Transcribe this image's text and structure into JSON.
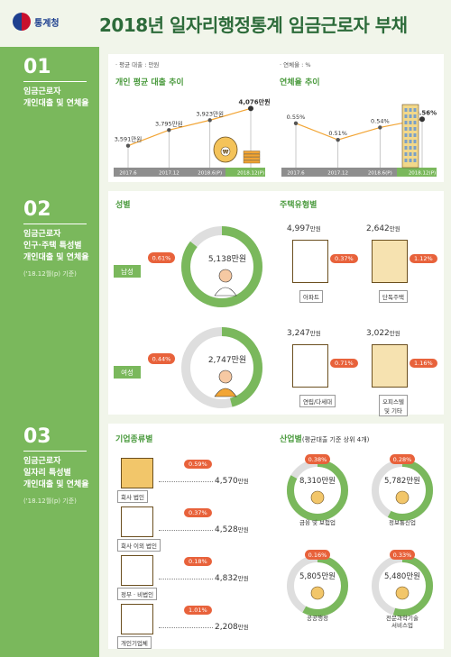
{
  "header": {
    "logo_text": "통계청",
    "title": "2018년 일자리행정통계 임금근로자 부채"
  },
  "sections": [
    {
      "num": "01",
      "title": "임금근로자\n개인대출 및 연체율",
      "sub": ""
    },
    {
      "num": "02",
      "title": "임금근로자\n인구·주택 특성별\n개인대출 및 연체율",
      "sub": "('18.12월(p) 기준)"
    },
    {
      "num": "03",
      "title": "임금근로자\n일자리 특성별\n개인대출 및 연체율",
      "sub": "('18.12월(p) 기준)"
    }
  ],
  "legend_notes": {
    "loan": "평균 대출 : 만원",
    "rate": "연체율 : %"
  },
  "unit": "만원",
  "chart_data": [
    {
      "type": "line",
      "title": "개인 평균 대출 추이",
      "categories": [
        "2017.6",
        "2017.12",
        "2018.6(P)",
        "2018.12(P)"
      ],
      "values": [
        3591,
        3795,
        3923,
        4076
      ],
      "labels": [
        "3,591만원",
        "3,795만원",
        "3,923만원",
        "4,076만원"
      ],
      "unit": "만원"
    },
    {
      "type": "line",
      "title": "연체율 추이",
      "categories": [
        "2017.6",
        "2017.12",
        "2018.6(P)",
        "2018.12(P)"
      ],
      "values": [
        0.55,
        0.51,
        0.54,
        0.56
      ],
      "labels": [
        "0.55%",
        "0.51%",
        "0.54%",
        "0.56%"
      ],
      "unit": "%"
    },
    {
      "type": "pie",
      "title": "성별",
      "series": [
        {
          "name": "남성",
          "loan": 5138,
          "loan_label": "5,138",
          "rate": 0.61,
          "rate_label": "0.61%"
        },
        {
          "name": "여성",
          "loan": 2747,
          "loan_label": "2,747",
          "rate": 0.44,
          "rate_label": "0.44%"
        }
      ],
      "max": 6000
    },
    {
      "type": "table",
      "title": "주택유형별",
      "series": [
        {
          "name": "아파트",
          "loan_label": "4,997",
          "rate_label": "0.37%"
        },
        {
          "name": "단독주택",
          "loan_label": "2,642",
          "rate_label": "1.12%"
        },
        {
          "name": "연립/다세대",
          "loan_label": "3,247",
          "rate_label": "0.71%"
        },
        {
          "name": "오피스텔\n및 기타",
          "loan_label": "3,022",
          "rate_label": "1.16%"
        }
      ]
    },
    {
      "type": "table",
      "title": "기업종류별",
      "series": [
        {
          "name": "회사 법인",
          "loan_label": "4,570",
          "rate_label": "0.59%"
        },
        {
          "name": "회사 이외 법인",
          "loan_label": "4,528",
          "rate_label": "0.37%"
        },
        {
          "name": "정부 · 비법인",
          "loan_label": "4,832",
          "rate_label": "0.18%"
        },
        {
          "name": "개인기업체",
          "loan_label": "2,208",
          "rate_label": "1.01%"
        }
      ]
    },
    {
      "type": "pie",
      "title": "산업별",
      "subtitle": "(평균대출 기준 상위 4개)",
      "series": [
        {
          "name": "금융 및 보험업",
          "loan": 8310,
          "loan_label": "8,310",
          "rate_label": "0.38%"
        },
        {
          "name": "정보통신업",
          "loan": 5782,
          "loan_label": "5,782",
          "rate_label": "0.28%"
        },
        {
          "name": "공공행정",
          "loan": 5805,
          "loan_label": "5,805",
          "rate_label": "0.16%"
        },
        {
          "name": "전문과학기술\n서비스업",
          "loan": 5480,
          "loan_label": "5,480",
          "rate_label": "0.33%"
        }
      ],
      "max": 10000
    }
  ],
  "colors": {
    "green": "#7ab85c",
    "dark_green": "#2d6b3a",
    "orange": "#e8623b",
    "gold": "#f2a535",
    "gray": "#dedede"
  }
}
